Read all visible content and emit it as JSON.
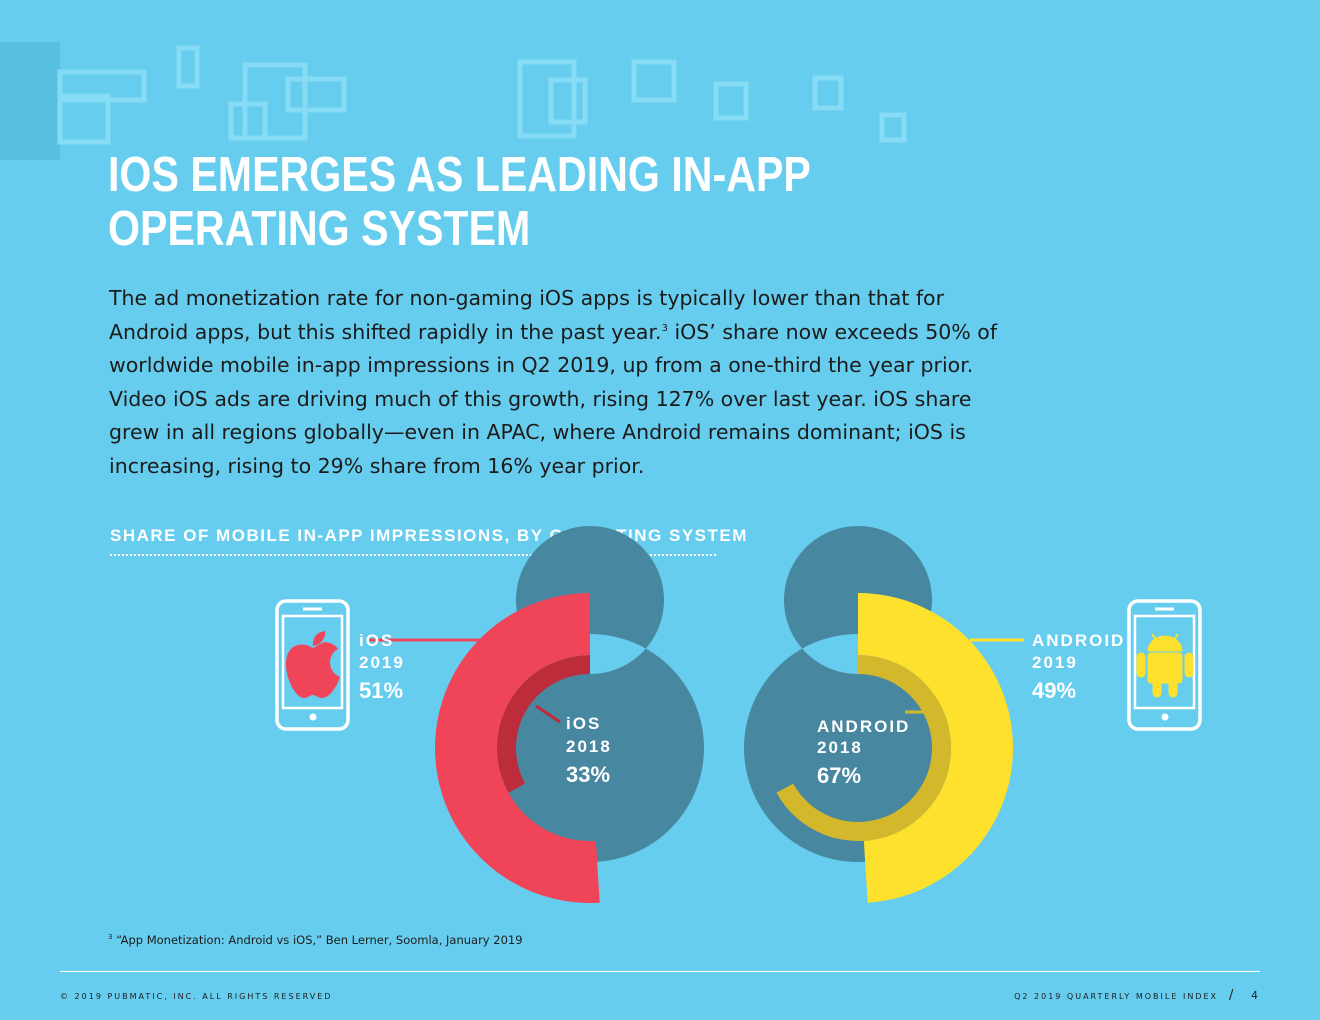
{
  "page": {
    "title_line1": "IOS EMERGES AS LEADING IN-APP",
    "title_line2": "OPERATING SYSTEM",
    "body_part1": "The ad monetization rate for non-gaming iOS apps is typically lower than that for Android apps, but this shifted rapidly in the past year.",
    "body_footnote_ref": "3",
    "body_part2": " iOS’ share now exceeds 50% of worldwide mobile in-app impressions in Q2 2019, up from a one-third the year prior. Video iOS ads are driving much of this growth, rising 127% over last year. iOS share grew in all regions globally—even in APAC, where Android remains dominant; iOS is increasing, rising to 29% share from 16% year prior."
  },
  "chart_data": {
    "type": "pie",
    "subtype": "nested-donut",
    "title": "SHARE OF MOBILE IN-APP IMPRESSIONS, BY OPERATING SYSTEM",
    "series": [
      {
        "name": "2019",
        "ring": "outer",
        "labels": [
          "iOS",
          "Android"
        ],
        "values": [
          51,
          49
        ]
      },
      {
        "name": "2018",
        "ring": "inner",
        "labels": [
          "iOS",
          "Android"
        ],
        "values": [
          33,
          67
        ]
      }
    ],
    "labels": {
      "ios_2019": {
        "os": "iOS",
        "year": "2019",
        "value": "51%"
      },
      "ios_2018": {
        "os": "iOS",
        "year": "2018",
        "value": "33%"
      },
      "android_2019": {
        "os": "ANDROID",
        "year": "2019",
        "value": "49%"
      },
      "android_2018": {
        "os": "ANDROID",
        "year": "2018",
        "value": "67%"
      }
    },
    "colors": {
      "ios_outer": "#f04559",
      "ios_inner": "#bd2c3b",
      "android_outer": "#fde12d",
      "android_inner": "#d4b82c",
      "ring_other": "#4787a0",
      "background": "#67cdee",
      "label_text": "#ffffff"
    }
  },
  "footnote": {
    "number": "3",
    "text": " “App Monetization: Android vs iOS,” Ben Lerner, Soomla, January 2019"
  },
  "footer": {
    "copyright": "© 2019 PUBMATIC, INC. ALL RIGHTS RESERVED",
    "report_name": "Q2 2019 QUARTERLY MOBILE INDEX",
    "separator": "/",
    "page_number": "4"
  },
  "icons": [
    "apple-icon",
    "android-icon",
    "phone-icon"
  ]
}
